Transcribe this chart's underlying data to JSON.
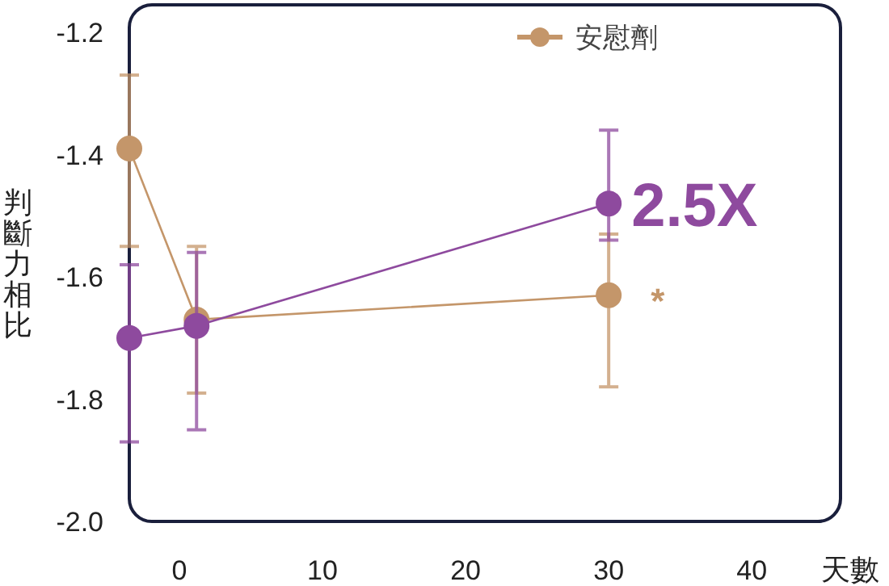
{
  "chart_data": {
    "type": "line",
    "xlabel": "天數",
    "ylabel": "判斷力相比",
    "x": [
      -3.5,
      1.2,
      30
    ],
    "series": [
      {
        "color": "#8e4a9e",
        "values": [
          -1.7,
          -1.68,
          -1.48
        ],
        "errors": [
          [
            -1.87,
            -1.58
          ],
          [
            -1.85,
            -1.56
          ],
          [
            -1.54,
            -1.36
          ]
        ]
      },
      {
        "name": "安慰劑",
        "color": "#c4966a",
        "values": [
          -1.39,
          -1.67,
          -1.63
        ],
        "errors": [
          [
            -1.55,
            -1.27
          ],
          [
            -1.79,
            -1.55
          ],
          [
            -1.78,
            -1.53
          ]
        ]
      }
    ],
    "xlim": [
      -3.5,
      46.2
    ],
    "ylim": [
      -2.0,
      -1.155
    ],
    "xticks": [
      0,
      10,
      20,
      30,
      40
    ],
    "yticks": [
      {
        "value": -2.0,
        "label": "-2.0"
      },
      -1.8,
      -1.6,
      -1.4,
      -1.2
    ],
    "annotations": [
      {
        "text": "2.5X",
        "x": 30,
        "y": -1.48
      },
      {
        "text": "*",
        "x": 30,
        "y": -1.63
      }
    ],
    "legend": "top",
    "marker": "circle",
    "line_style": "solid",
    "grid": false
  }
}
